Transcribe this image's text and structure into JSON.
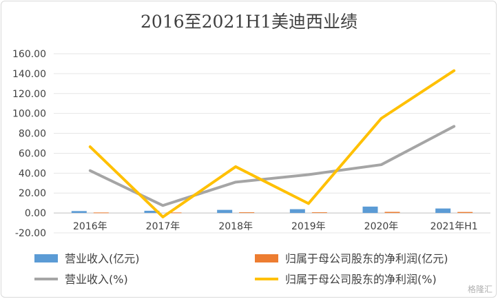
{
  "chart_data": {
    "type": "bar",
    "title": "2016至2021H1美迪西业绩",
    "categories": [
      "2016年",
      "2017年",
      "2018年",
      "2019年",
      "2020年",
      "2021年H1"
    ],
    "ylim": [
      -20,
      160
    ],
    "yticks": [
      "-20.00",
      "0.00",
      "20.00",
      "40.00",
      "60.00",
      "80.00",
      "100.00",
      "120.00",
      "140.00",
      "160.00"
    ],
    "grid": true,
    "legend_position": "bottom",
    "series": [
      {
        "name": "营业收入(亿元)",
        "kind": "bar",
        "color": "#5b9bd5",
        "values": [
          1.9,
          2.2,
          3.1,
          3.8,
          6.4,
          4.5
        ]
      },
      {
        "name": "归属于母公司股东的净利润(亿元)",
        "kind": "bar",
        "color": "#ed7d31",
        "values": [
          0.5,
          0.5,
          0.7,
          0.7,
          1.1,
          1.0
        ]
      },
      {
        "name": "营业收入(%)",
        "kind": "line",
        "color": "#a5a5a5",
        "values": [
          42.5,
          7.5,
          31.0,
          38.5,
          48.5,
          87.0
        ]
      },
      {
        "name": "归属于母公司股东的净利润(%)",
        "kind": "line",
        "color": "#ffc000",
        "values": [
          66.5,
          -4.0,
          46.5,
          9.5,
          95.0,
          143.0
        ]
      }
    ]
  },
  "watermark": "格隆汇"
}
